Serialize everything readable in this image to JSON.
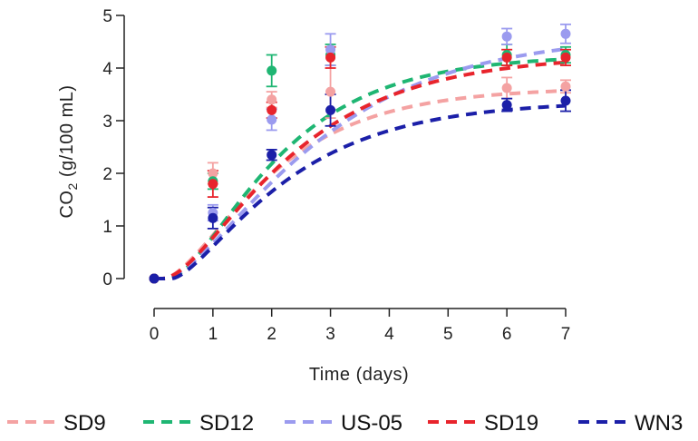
{
  "chart_data": {
    "type": "line",
    "title": "",
    "xlabel": "Time (days)",
    "ylabel_prefix": "CO",
    "ylabel_sub": "2",
    "ylabel_suffix": " (g/100 mL)",
    "xlim": [
      0,
      7
    ],
    "ylim": [
      0,
      5
    ],
    "x_ticks": [
      0,
      1,
      2,
      3,
      4,
      5,
      6,
      7
    ],
    "y_ticks": [
      0,
      1,
      2,
      3,
      4,
      5
    ],
    "grid": false,
    "legend_position": "bottom",
    "x": [
      0,
      1,
      2,
      3,
      6,
      7
    ],
    "series": [
      {
        "name": "SD9",
        "color": "#f4a2a2",
        "values": [
          0,
          2.0,
          3.4,
          3.55,
          3.62,
          3.65
        ],
        "errors": [
          0,
          0.2,
          0.15,
          0.5,
          0.2,
          0.12
        ],
        "fit": {
          "plateau": 3.63,
          "k": 0.68,
          "t0": 0.15,
          "n": 1.8
        }
      },
      {
        "name": "SD12",
        "color": "#1fb673",
        "values": [
          0,
          1.85,
          3.95,
          4.25,
          4.25,
          4.25
        ],
        "errors": [
          0,
          0.15,
          0.3,
          0.2,
          0.2,
          0.15
        ],
        "fit": {
          "plateau": 4.25,
          "k": 0.67,
          "t0": 0.25,
          "n": 1.8
        }
      },
      {
        "name": "US-05",
        "color": "#9b9bef",
        "values": [
          0,
          1.25,
          3.02,
          4.35,
          4.6,
          4.65
        ],
        "errors": [
          0,
          0.15,
          0.2,
          0.3,
          0.15,
          0.18
        ],
        "fit": {
          "plateau": 4.65,
          "k": 0.49,
          "t0": 0.15,
          "n": 1.8
        }
      },
      {
        "name": "SD19",
        "color": "#e8242c",
        "values": [
          0,
          1.8,
          3.2,
          4.2,
          4.2,
          4.2
        ],
        "errors": [
          0,
          0.25,
          0.15,
          0.2,
          0.15,
          0.15
        ],
        "fit": {
          "plateau": 4.25,
          "k": 0.58,
          "t0": 0.15,
          "n": 1.8
        }
      },
      {
        "name": "WN3",
        "color": "#1b1fa8",
        "values": [
          0,
          1.15,
          2.35,
          3.2,
          3.3,
          3.38
        ],
        "errors": [
          0,
          0.2,
          0.1,
          0.3,
          0.12,
          0.2
        ],
        "fit": {
          "plateau": 3.38,
          "k": 0.6,
          "t0": 0.3,
          "n": 1.6
        }
      }
    ]
  }
}
